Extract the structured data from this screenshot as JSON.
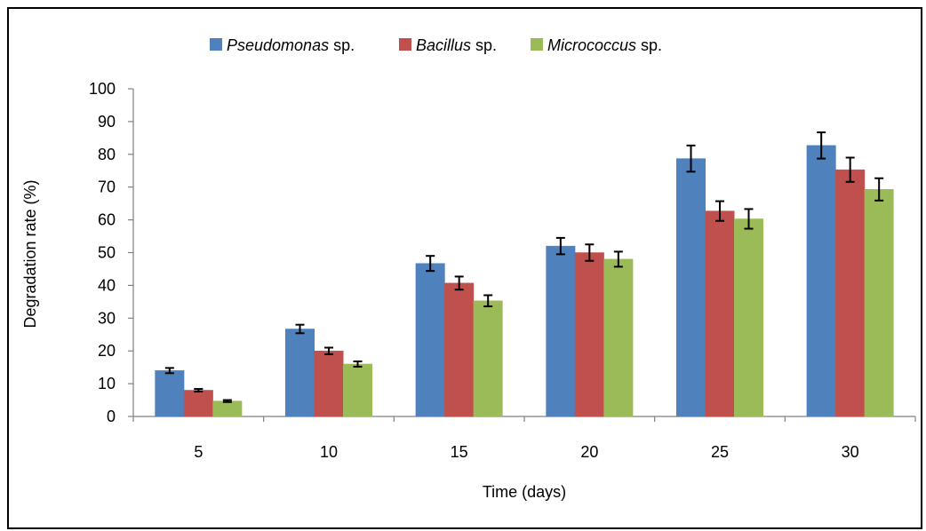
{
  "chart_data": {
    "type": "bar",
    "title": "",
    "xlabel": "Time (days)",
    "ylabel": "Degradation rate (%)",
    "categories": [
      "5",
      "10",
      "15",
      "20",
      "25",
      "30"
    ],
    "ylim": [
      0,
      100
    ],
    "yticks": [
      "0",
      "10",
      "20",
      "30",
      "40",
      "50",
      "60",
      "70",
      "80",
      "90",
      "100"
    ],
    "grid": false,
    "legend_position": "top",
    "error_bars": true,
    "series": [
      {
        "name_italic": "Pseudomonas",
        "name_suffix": " sp.",
        "color": "#4f81bd",
        "values": [
          14,
          26.7,
          46.7,
          52,
          78.7,
          82.7
        ],
        "errors": [
          0.8,
          1.3,
          2.3,
          2.5,
          4.0,
          4.0
        ]
      },
      {
        "name_italic": "Bacillus",
        "name_suffix": " sp.",
        "color": "#c0504d",
        "values": [
          8,
          20,
          40.7,
          50,
          62.7,
          75.3
        ],
        "errors": [
          0.4,
          1.0,
          2.0,
          2.5,
          3.0,
          3.7
        ]
      },
      {
        "name_italic": "Micrococcus",
        "name_suffix": " sp.",
        "color": "#9bbb59",
        "values": [
          4.7,
          16,
          35.3,
          48,
          60.3,
          69.3
        ],
        "errors": [
          0.3,
          0.8,
          1.7,
          2.3,
          3.0,
          3.4
        ]
      }
    ]
  }
}
